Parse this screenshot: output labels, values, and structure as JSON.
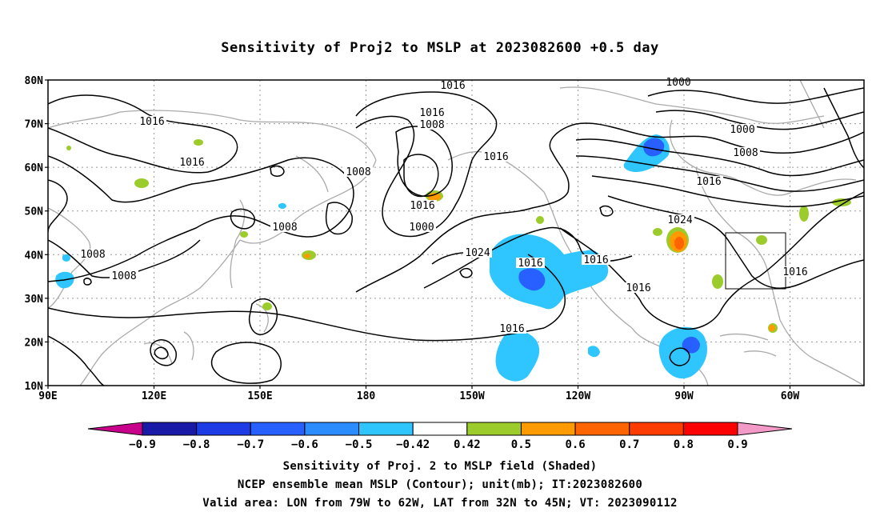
{
  "title": "Sensitivity of Proj2 to MSLP at 2023082600 +0.5 day",
  "axes": {
    "lat_labels": [
      "80N",
      "70N",
      "60N",
      "50N",
      "40N",
      "30N",
      "20N",
      "10N"
    ],
    "lon_labels": [
      "90E",
      "120E",
      "150E",
      "180",
      "150W",
      "120W",
      "90W",
      "60W"
    ]
  },
  "contour_labels": [
    "1016",
    "1000",
    "1016",
    "1008",
    "1016",
    "1000",
    "1008",
    "1016",
    "1008",
    "1016",
    "1016",
    "1016",
    "1000",
    "1008",
    "1024",
    "1008",
    "1008",
    "1024",
    "1016",
    "1016",
    "1016",
    "1016",
    "1016",
    "1016"
  ],
  "colorbar": {
    "labels": [
      "-0.9",
      "-0.8",
      "-0.7",
      "-0.6",
      "-0.5",
      "-0.42",
      "0.42",
      "0.5",
      "0.6",
      "0.7",
      "0.8",
      "0.9"
    ],
    "colors": [
      "#c8008c",
      "#1a1aa8",
      "#1e3ce6",
      "#2860ff",
      "#2c8cff",
      "#2fc6ff",
      "#ffffff",
      "#9ccc2c",
      "#ff9a00",
      "#ff6400",
      "#ff3c00",
      "#ff0000",
      "#f49ac8"
    ]
  },
  "shading_colors": {
    "light_blue": "#2fc6ff",
    "mid_blue": "#2c8cff",
    "blue": "#2860ff",
    "green": "#9ccc2c",
    "orange": "#ff9a00",
    "red_orange": "#ff6400"
  },
  "captions": [
    "Sensitivity of Proj. 2 to MSLP field (Shaded)",
    "NCEP ensemble mean MSLP (Contour); unit(mb); IT:2023082600",
    "Valid area: LON from 79W to 62W, LAT from 32N to 45N; VT: 2023090112"
  ]
}
